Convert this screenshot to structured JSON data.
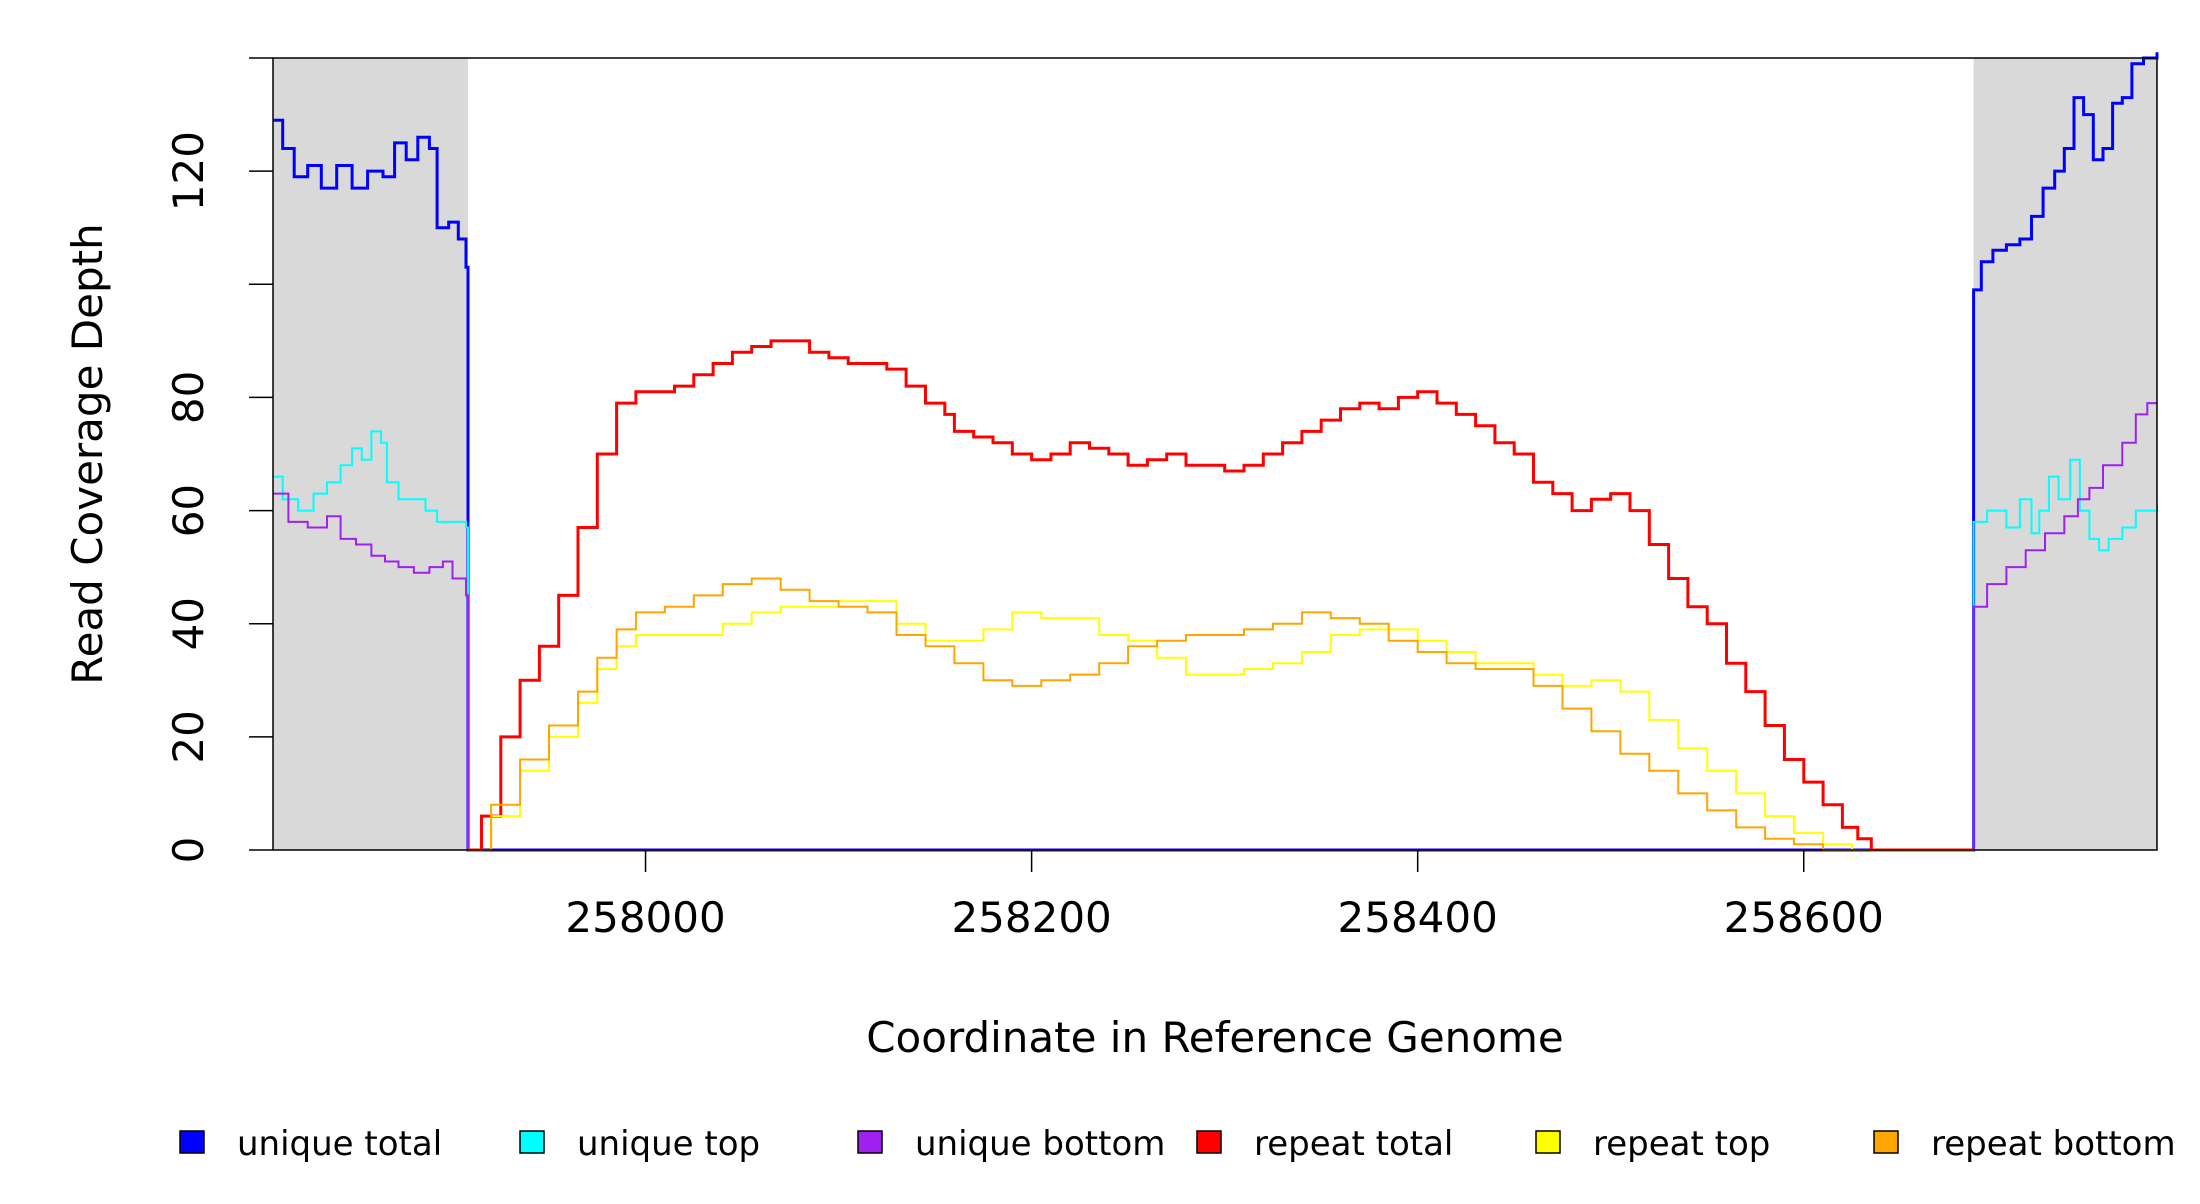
{
  "chart_data": {
    "type": "line",
    "title": "",
    "xlabel": "Coordinate in Reference Genome",
    "ylabel": "Read Coverage Depth",
    "xlim": [
      257807,
      258783
    ],
    "ylim": [
      0,
      140
    ],
    "x_ticks": [
      258000,
      258200,
      258400,
      258600
    ],
    "x_tick_labels": [
      "258000",
      "258200",
      "258400",
      "258600"
    ],
    "y_ticks": [
      0,
      20,
      40,
      60,
      80,
      100,
      120,
      140
    ],
    "y_tick_labels": [
      "0",
      "20",
      "40",
      "60",
      "80",
      "",
      "120",
      ""
    ],
    "shaded_regions": [
      {
        "from": 257807,
        "to": 257908,
        "color": "#d9d9d9"
      },
      {
        "from": 258688,
        "to": 258783,
        "color": "#d9d9d9"
      }
    ],
    "grid": false,
    "legend_position": "bottom",
    "series": [
      {
        "name": "unique total",
        "color": "#0000ff",
        "points": [
          [
            257807,
            129
          ],
          [
            257812,
            124
          ],
          [
            257818,
            119
          ],
          [
            257825,
            121
          ],
          [
            257832,
            117
          ],
          [
            257840,
            121
          ],
          [
            257848,
            117
          ],
          [
            257856,
            120
          ],
          [
            257864,
            119
          ],
          [
            257870,
            125
          ],
          [
            257876,
            122
          ],
          [
            257882,
            126
          ],
          [
            257888,
            124
          ],
          [
            257892,
            110
          ],
          [
            257898,
            111
          ],
          [
            257903,
            108
          ],
          [
            257907,
            103
          ],
          [
            257908,
            0
          ],
          [
            258688,
            0
          ],
          [
            258688,
            99
          ],
          [
            258692,
            104
          ],
          [
            258698,
            106
          ],
          [
            258705,
            107
          ],
          [
            258712,
            108
          ],
          [
            258718,
            112
          ],
          [
            258724,
            117
          ],
          [
            258730,
            120
          ],
          [
            258735,
            124
          ],
          [
            258740,
            133
          ],
          [
            258745,
            130
          ],
          [
            258750,
            122
          ],
          [
            258755,
            124
          ],
          [
            258760,
            132
          ],
          [
            258765,
            133
          ],
          [
            258770,
            139
          ],
          [
            258776,
            140
          ],
          [
            258783,
            141
          ]
        ]
      },
      {
        "name": "unique top",
        "color": "#00ffff",
        "points": [
          [
            257807,
            66
          ],
          [
            257812,
            62
          ],
          [
            257820,
            60
          ],
          [
            257828,
            63
          ],
          [
            257835,
            65
          ],
          [
            257842,
            68
          ],
          [
            257848,
            71
          ],
          [
            257853,
            69
          ],
          [
            257858,
            74
          ],
          [
            257863,
            72
          ],
          [
            257866,
            65
          ],
          [
            257872,
            62
          ],
          [
            257880,
            62
          ],
          [
            257886,
            60
          ],
          [
            257892,
            58
          ],
          [
            257900,
            58
          ],
          [
            257907,
            57
          ],
          [
            257908,
            0
          ],
          [
            258688,
            0
          ],
          [
            258688,
            58
          ],
          [
            258695,
            60
          ],
          [
            258705,
            57
          ],
          [
            258712,
            62
          ],
          [
            258718,
            56
          ],
          [
            258722,
            60
          ],
          [
            258727,
            66
          ],
          [
            258732,
            62
          ],
          [
            258738,
            69
          ],
          [
            258743,
            60
          ],
          [
            258748,
            55
          ],
          [
            258753,
            53
          ],
          [
            258758,
            55
          ],
          [
            258765,
            57
          ],
          [
            258772,
            60
          ],
          [
            258783,
            61
          ]
        ]
      },
      {
        "name": "unique bottom",
        "color": "#a020f0",
        "points": [
          [
            257807,
            63
          ],
          [
            257815,
            58
          ],
          [
            257825,
            57
          ],
          [
            257835,
            59
          ],
          [
            257842,
            55
          ],
          [
            257850,
            54
          ],
          [
            257858,
            52
          ],
          [
            257865,
            51
          ],
          [
            257872,
            50
          ],
          [
            257880,
            49
          ],
          [
            257888,
            50
          ],
          [
            257895,
            51
          ],
          [
            257900,
            48
          ],
          [
            257907,
            45
          ],
          [
            257908,
            0
          ],
          [
            258688,
            0
          ],
          [
            258688,
            43
          ],
          [
            258695,
            47
          ],
          [
            258705,
            50
          ],
          [
            258715,
            53
          ],
          [
            258725,
            56
          ],
          [
            258735,
            59
          ],
          [
            258742,
            62
          ],
          [
            258748,
            64
          ],
          [
            258755,
            68
          ],
          [
            258765,
            72
          ],
          [
            258772,
            77
          ],
          [
            258778,
            79
          ],
          [
            258783,
            79
          ]
        ]
      },
      {
        "name": "repeat total",
        "color": "#ff0000",
        "points": [
          [
            257908,
            0
          ],
          [
            257915,
            6
          ],
          [
            257925,
            20
          ],
          [
            257935,
            30
          ],
          [
            257945,
            36
          ],
          [
            257955,
            45
          ],
          [
            257965,
            57
          ],
          [
            257975,
            70
          ],
          [
            257985,
            79
          ],
          [
            257995,
            81
          ],
          [
            258005,
            81
          ],
          [
            258015,
            82
          ],
          [
            258025,
            84
          ],
          [
            258035,
            86
          ],
          [
            258045,
            88
          ],
          [
            258055,
            89
          ],
          [
            258065,
            90
          ],
          [
            258075,
            90
          ],
          [
            258085,
            88
          ],
          [
            258095,
            87
          ],
          [
            258105,
            86
          ],
          [
            258115,
            86
          ],
          [
            258125,
            85
          ],
          [
            258135,
            82
          ],
          [
            258145,
            79
          ],
          [
            258155,
            77
          ],
          [
            258160,
            74
          ],
          [
            258170,
            73
          ],
          [
            258180,
            72
          ],
          [
            258190,
            70
          ],
          [
            258200,
            69
          ],
          [
            258210,
            70
          ],
          [
            258220,
            72
          ],
          [
            258230,
            71
          ],
          [
            258240,
            70
          ],
          [
            258250,
            68
          ],
          [
            258260,
            69
          ],
          [
            258270,
            70
          ],
          [
            258280,
            68
          ],
          [
            258290,
            68
          ],
          [
            258300,
            67
          ],
          [
            258310,
            68
          ],
          [
            258320,
            70
          ],
          [
            258330,
            72
          ],
          [
            258340,
            74
          ],
          [
            258350,
            76
          ],
          [
            258360,
            78
          ],
          [
            258370,
            79
          ],
          [
            258380,
            78
          ],
          [
            258390,
            80
          ],
          [
            258400,
            81
          ],
          [
            258410,
            79
          ],
          [
            258420,
            77
          ],
          [
            258430,
            75
          ],
          [
            258440,
            72
          ],
          [
            258450,
            70
          ],
          [
            258460,
            65
          ],
          [
            258470,
            63
          ],
          [
            258480,
            60
          ],
          [
            258490,
            62
          ],
          [
            258500,
            63
          ],
          [
            258510,
            60
          ],
          [
            258520,
            54
          ],
          [
            258530,
            48
          ],
          [
            258540,
            43
          ],
          [
            258550,
            40
          ],
          [
            258560,
            33
          ],
          [
            258570,
            28
          ],
          [
            258580,
            22
          ],
          [
            258590,
            16
          ],
          [
            258600,
            12
          ],
          [
            258610,
            8
          ],
          [
            258620,
            4
          ],
          [
            258628,
            2
          ],
          [
            258635,
            0
          ],
          [
            258688,
            0
          ]
        ]
      },
      {
        "name": "repeat top",
        "color": "#ffff00",
        "points": [
          [
            257908,
            0
          ],
          [
            257920,
            6
          ],
          [
            257935,
            14
          ],
          [
            257950,
            20
          ],
          [
            257965,
            26
          ],
          [
            257975,
            32
          ],
          [
            257985,
            36
          ],
          [
            257995,
            38
          ],
          [
            258010,
            38
          ],
          [
            258025,
            38
          ],
          [
            258040,
            40
          ],
          [
            258055,
            42
          ],
          [
            258070,
            43
          ],
          [
            258085,
            43
          ],
          [
            258100,
            44
          ],
          [
            258115,
            44
          ],
          [
            258130,
            40
          ],
          [
            258145,
            37
          ],
          [
            258160,
            37
          ],
          [
            258175,
            39
          ],
          [
            258190,
            42
          ],
          [
            258205,
            41
          ],
          [
            258220,
            41
          ],
          [
            258235,
            38
          ],
          [
            258250,
            37
          ],
          [
            258265,
            34
          ],
          [
            258280,
            31
          ],
          [
            258295,
            31
          ],
          [
            258310,
            32
          ],
          [
            258325,
            33
          ],
          [
            258340,
            35
          ],
          [
            258355,
            38
          ],
          [
            258370,
            39
          ],
          [
            258385,
            39
          ],
          [
            258400,
            37
          ],
          [
            258415,
            35
          ],
          [
            258430,
            33
          ],
          [
            258445,
            33
          ],
          [
            258460,
            31
          ],
          [
            258475,
            29
          ],
          [
            258490,
            30
          ],
          [
            258505,
            28
          ],
          [
            258520,
            23
          ],
          [
            258535,
            18
          ],
          [
            258550,
            14
          ],
          [
            258565,
            10
          ],
          [
            258580,
            6
          ],
          [
            258595,
            3
          ],
          [
            258610,
            1
          ],
          [
            258625,
            0
          ],
          [
            258688,
            0
          ]
        ]
      },
      {
        "name": "repeat bottom",
        "color": "#ffa500",
        "points": [
          [
            257908,
            0
          ],
          [
            257920,
            8
          ],
          [
            257935,
            16
          ],
          [
            257950,
            22
          ],
          [
            257965,
            28
          ],
          [
            257975,
            34
          ],
          [
            257985,
            39
          ],
          [
            257995,
            42
          ],
          [
            258010,
            43
          ],
          [
            258025,
            45
          ],
          [
            258040,
            47
          ],
          [
            258055,
            48
          ],
          [
            258070,
            46
          ],
          [
            258085,
            44
          ],
          [
            258100,
            43
          ],
          [
            258115,
            42
          ],
          [
            258130,
            38
          ],
          [
            258145,
            36
          ],
          [
            258160,
            33
          ],
          [
            258175,
            30
          ],
          [
            258190,
            29
          ],
          [
            258205,
            30
          ],
          [
            258220,
            31
          ],
          [
            258235,
            33
          ],
          [
            258250,
            36
          ],
          [
            258265,
            37
          ],
          [
            258280,
            38
          ],
          [
            258295,
            38
          ],
          [
            258310,
            39
          ],
          [
            258325,
            40
          ],
          [
            258340,
            42
          ],
          [
            258355,
            41
          ],
          [
            258370,
            40
          ],
          [
            258385,
            37
          ],
          [
            258400,
            35
          ],
          [
            258415,
            33
          ],
          [
            258430,
            32
          ],
          [
            258445,
            32
          ],
          [
            258460,
            29
          ],
          [
            258475,
            25
          ],
          [
            258490,
            21
          ],
          [
            258505,
            17
          ],
          [
            258520,
            14
          ],
          [
            258535,
            10
          ],
          [
            258550,
            7
          ],
          [
            258565,
            4
          ],
          [
            258580,
            2
          ],
          [
            258595,
            1
          ],
          [
            258610,
            0
          ],
          [
            258688,
            0
          ]
        ]
      }
    ]
  }
}
